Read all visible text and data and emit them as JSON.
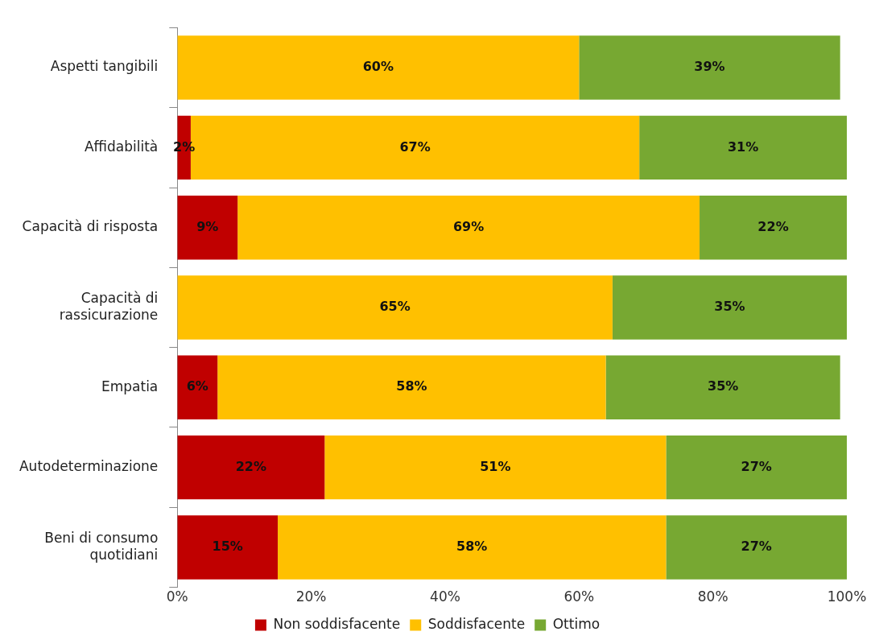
{
  "chart_data": {
    "type": "bar",
    "orientation": "horizontal",
    "stacked": true,
    "categories": [
      "Aspetti tangibili",
      "Affidabilità",
      "Capacità di risposta",
      "Capacità di rassicurazione",
      "Empatia",
      "Autodeterminazione",
      "Beni di consumo quotidiani"
    ],
    "series": [
      {
        "name": "Non soddisfacente",
        "color": "#c00000",
        "values": [
          null,
          2,
          9,
          null,
          6,
          22,
          15
        ],
        "value_labels": [
          null,
          "2%",
          "9%",
          null,
          "6%",
          "22%",
          "15%"
        ]
      },
      {
        "name": "Soddisfacente",
        "color": "#ffc000",
        "values": [
          60,
          67,
          69,
          65,
          58,
          51,
          58
        ],
        "value_labels": [
          "60%",
          "67%",
          "69%",
          "65%",
          "58%",
          "51%",
          "58%"
        ]
      },
      {
        "name": "Ottimo",
        "color": "#77a832",
        "values": [
          39,
          31,
          22,
          35,
          35,
          27,
          27
        ],
        "value_labels": [
          "39%",
          "31%",
          "22%",
          "35%",
          "35%",
          "27%",
          "27%"
        ]
      }
    ],
    "xlim": [
      0,
      100
    ],
    "xticks": [
      {
        "value": 0,
        "label": "0%"
      },
      {
        "value": 20,
        "label": "20%"
      },
      {
        "value": 40,
        "label": "40%"
      },
      {
        "value": 60,
        "label": "60%"
      },
      {
        "value": 80,
        "label": "80%"
      },
      {
        "value": 100,
        "label": "100%"
      }
    ],
    "grid": false,
    "legend": "bottom"
  }
}
